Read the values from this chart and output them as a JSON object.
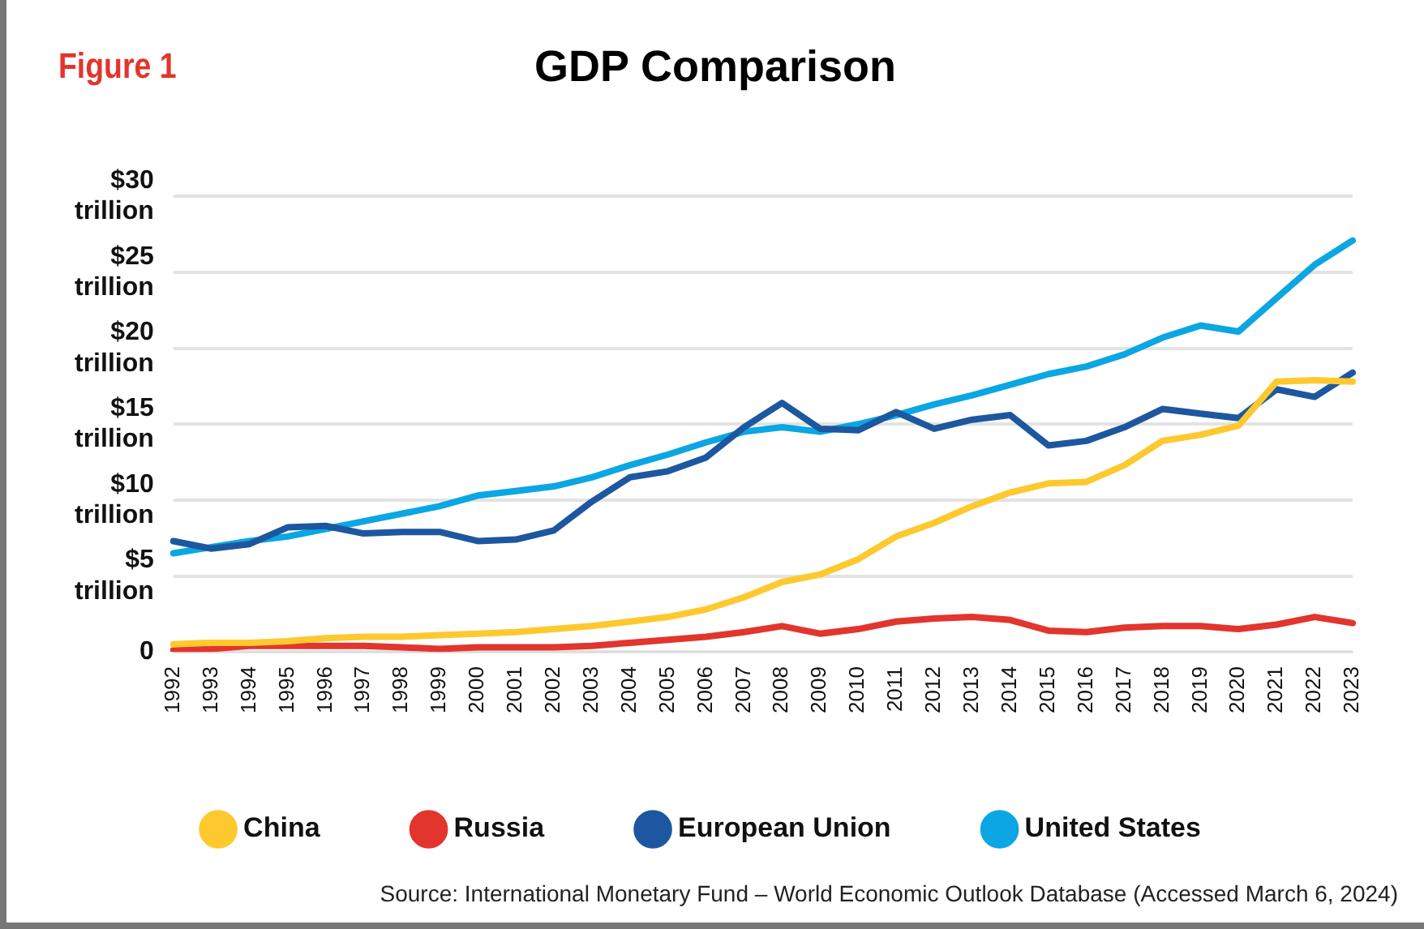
{
  "chart_data": {
    "type": "line",
    "title": "GDP Comparison",
    "annotations": [
      "Figure 1",
      "Source: International Monetary Fund – World Economic Outlook Database (Accessed March 6, 2024)"
    ],
    "categories": [
      "1992",
      "1993",
      "1994",
      "1995",
      "1996",
      "1997",
      "1998",
      "1999",
      "2000",
      "2001",
      "2002",
      "2003",
      "2004",
      "2005",
      "2006",
      "2007",
      "2008",
      "2009",
      "2010",
      "2011",
      "2012",
      "2013",
      "2014",
      "2015",
      "2016",
      "2017",
      "2018",
      "2019",
      "2020",
      "2021",
      "2022",
      "2023"
    ],
    "ylim": [
      0,
      30
    ],
    "yticks": [
      0,
      {
        "value": 5,
        "label": "$5 trillion"
      },
      {
        "value": 10,
        "label": "$10 trillion"
      },
      {
        "value": 15,
        "label": "$15 trillion"
      },
      {
        "value": 20,
        "label": "$20 trillion"
      },
      {
        "value": 25,
        "label": "$25 trillion"
      },
      {
        "value": 30,
        "label": "$30 trillion"
      }
    ],
    "grid": "y",
    "legend": "bottom",
    "marker": "none",
    "line_style": "solid",
    "series": [
      {
        "name": "China",
        "color": "#fec92e",
        "values": [
          0.5,
          0.6,
          0.6,
          0.7,
          0.9,
          1.0,
          1.0,
          1.1,
          1.2,
          1.3,
          1.5,
          1.7,
          2.0,
          2.3,
          2.8,
          3.6,
          4.6,
          5.1,
          6.1,
          7.6,
          8.5,
          9.6,
          10.5,
          11.1,
          11.2,
          12.3,
          13.9,
          14.3,
          14.9,
          17.8,
          17.9,
          17.8
        ]
      },
      {
        "name": "Russia",
        "color": "#e2352d",
        "values": [
          0.1,
          0.2,
          0.4,
          0.4,
          0.4,
          0.4,
          0.3,
          0.2,
          0.3,
          0.3,
          0.3,
          0.4,
          0.6,
          0.8,
          1.0,
          1.3,
          1.7,
          1.2,
          1.5,
          2.0,
          2.2,
          2.3,
          2.1,
          1.4,
          1.3,
          1.6,
          1.7,
          1.7,
          1.5,
          1.8,
          2.3,
          1.9
        ]
      },
      {
        "name": "European Union",
        "color": "#1d57a0",
        "values": [
          7.3,
          6.8,
          7.1,
          8.2,
          8.3,
          7.8,
          7.9,
          7.9,
          7.3,
          7.4,
          8.0,
          9.9,
          11.5,
          11.9,
          12.8,
          14.8,
          16.4,
          14.7,
          14.6,
          15.8,
          14.7,
          15.3,
          15.6,
          13.6,
          13.9,
          14.8,
          16.0,
          15.7,
          15.4,
          17.3,
          16.8,
          18.4
        ]
      },
      {
        "name": "United States",
        "color": "#0ba6e3",
        "values": [
          6.5,
          6.9,
          7.3,
          7.6,
          8.1,
          8.6,
          9.1,
          9.6,
          10.3,
          10.6,
          10.9,
          11.5,
          12.3,
          13.0,
          13.8,
          14.5,
          14.8,
          14.5,
          15.0,
          15.6,
          16.3,
          16.9,
          17.6,
          18.3,
          18.8,
          19.6,
          20.7,
          21.5,
          21.1,
          23.3,
          25.5,
          27.1
        ]
      }
    ]
  }
}
